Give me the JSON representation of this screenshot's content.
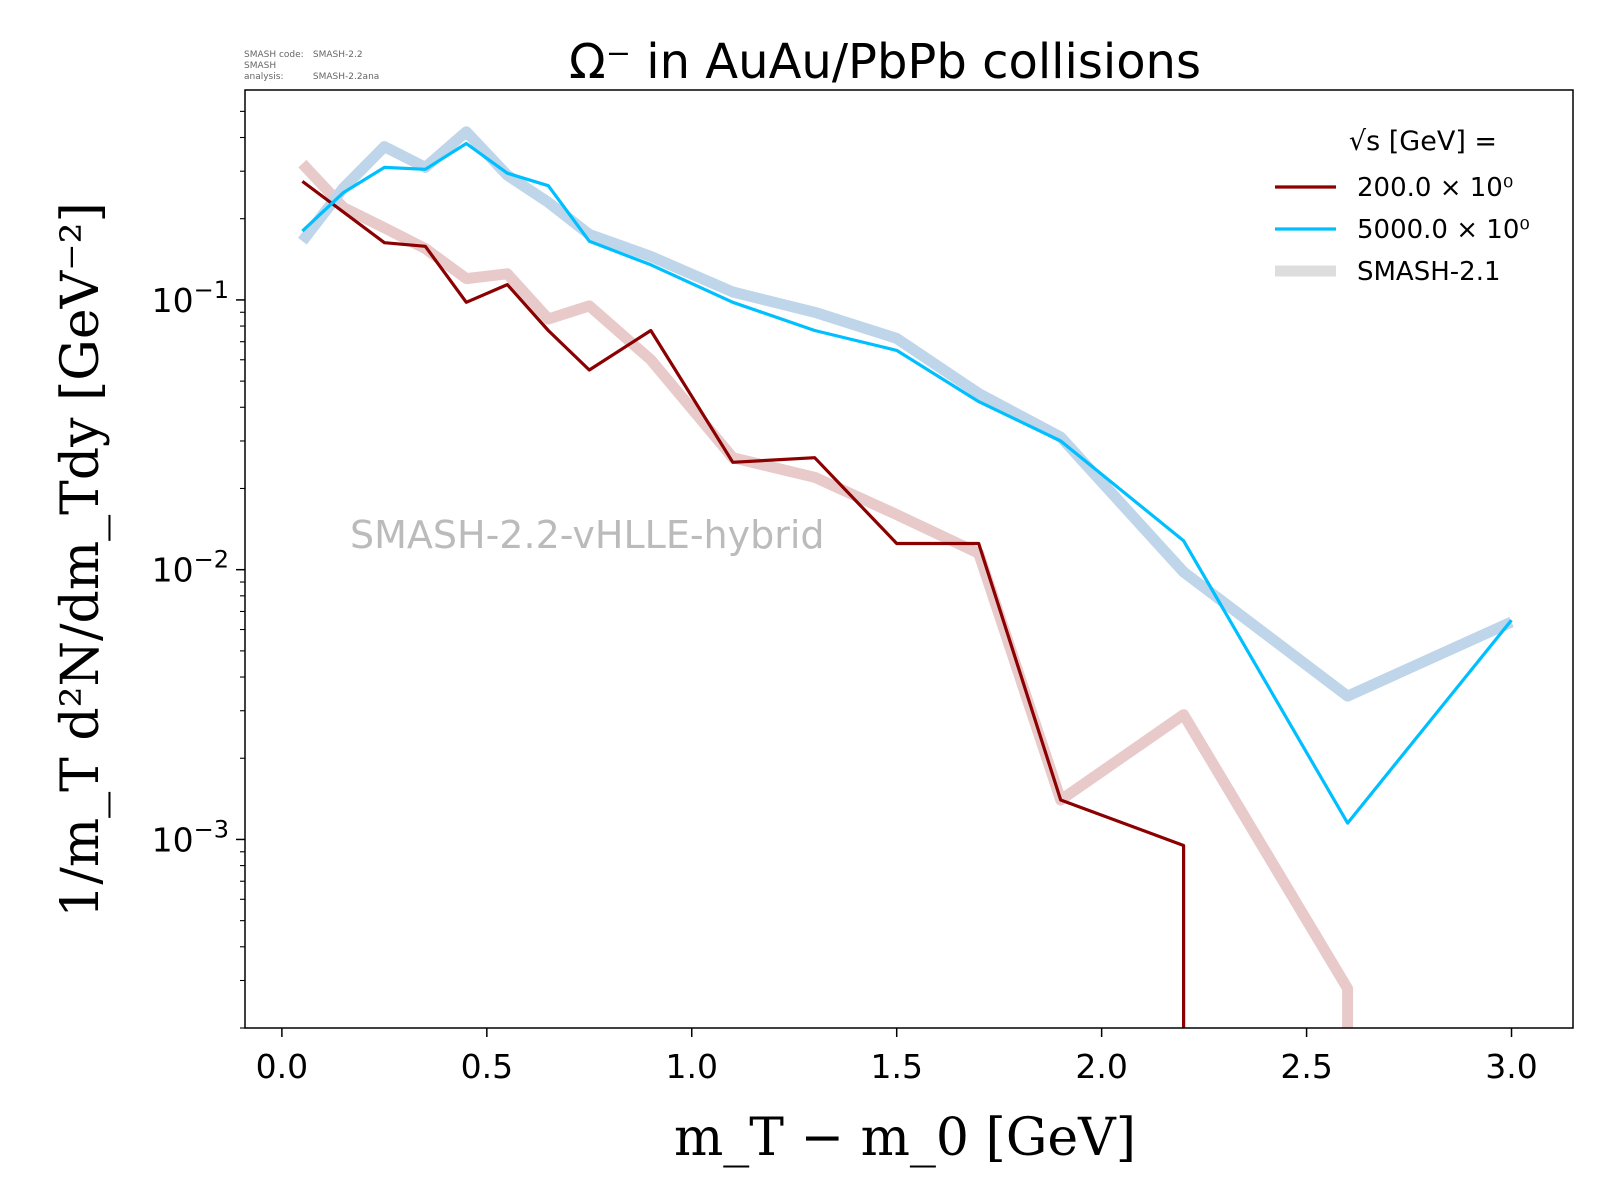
{
  "meta": {
    "code_label": "SMASH code:",
    "code_value": "SMASH-2.2",
    "analysis_label": "SMASH analysis:",
    "analysis_value": "SMASH-2.2ana"
  },
  "chart_data": {
    "type": "line",
    "title": "Ω⁻ in AuAu/PbPb collisions",
    "xlabel": "m_T − m_0 [GeV]",
    "ylabel": "1/m_T d²N/dm_Tdy [GeV⁻²]",
    "watermark": "SMASH-2.2-vHLLE-hybrid",
    "yscale": "log",
    "xlim": [
      -0.09,
      3.15
    ],
    "ylim": [
      0.0002,
      0.6
    ],
    "xticks": [
      "0.0",
      "0.5",
      "1.0",
      "1.5",
      "2.0",
      "2.5",
      "3.0"
    ],
    "yticks": [
      {
        "base": "10",
        "exp": "−1"
      },
      {
        "base": "10",
        "exp": "−2"
      },
      {
        "base": "10",
        "exp": "−3"
      }
    ],
    "legend": {
      "title": "√s  [GeV] =",
      "position": "top-right"
    },
    "series": [
      {
        "name": "200.0 × 10⁰",
        "role": "main",
        "color": "#8b0000",
        "x": [
          0.05,
          0.25,
          0.35,
          0.45,
          0.55,
          0.65,
          0.75,
          0.9,
          1.1,
          1.3,
          1.5,
          1.7,
          1.9,
          2.2,
          2.2
        ],
        "y": [
          0.275,
          0.163,
          0.158,
          0.098,
          0.114,
          0.077,
          0.055,
          0.077,
          0.025,
          0.026,
          0.0125,
          0.0125,
          0.0014,
          0.00095,
          0.0002
        ]
      },
      {
        "name": "5000.0 × 10⁰",
        "role": "main",
        "color": "#00bfff",
        "x": [
          0.05,
          0.15,
          0.25,
          0.35,
          0.45,
          0.55,
          0.65,
          0.75,
          0.9,
          1.1,
          1.3,
          1.5,
          1.7,
          1.9,
          2.2,
          2.6,
          3.0
        ],
        "y": [
          0.18,
          0.25,
          0.31,
          0.305,
          0.38,
          0.295,
          0.265,
          0.165,
          0.135,
          0.098,
          0.077,
          0.065,
          0.042,
          0.03,
          0.0128,
          0.00115,
          0.0065
        ]
      },
      {
        "name": "SMASH-2.1",
        "role": "reference",
        "color": "#dddddd",
        "legend_color": "#dddddd"
      }
    ],
    "reference_curves": [
      {
        "color": "#e8caca",
        "x": [
          0.05,
          0.15,
          0.25,
          0.35,
          0.45,
          0.55,
          0.65,
          0.75,
          0.9,
          1.1,
          1.3,
          1.5,
          1.7,
          1.9,
          2.2,
          2.6,
          2.6
        ],
        "y": [
          0.32,
          0.22,
          0.185,
          0.155,
          0.12,
          0.125,
          0.085,
          0.095,
          0.06,
          0.026,
          0.022,
          0.016,
          0.0115,
          0.0014,
          0.0029,
          0.00028,
          0.0002
        ]
      },
      {
        "color": "#bed5ea",
        "x": [
          0.05,
          0.15,
          0.25,
          0.35,
          0.45,
          0.55,
          0.65,
          0.75,
          0.9,
          1.1,
          1.3,
          1.5,
          1.7,
          1.9,
          2.2,
          2.6,
          3.0
        ],
        "y": [
          0.165,
          0.26,
          0.37,
          0.31,
          0.42,
          0.29,
          0.23,
          0.175,
          0.145,
          0.107,
          0.09,
          0.072,
          0.045,
          0.031,
          0.0098,
          0.0034,
          0.0064
        ]
      }
    ]
  }
}
